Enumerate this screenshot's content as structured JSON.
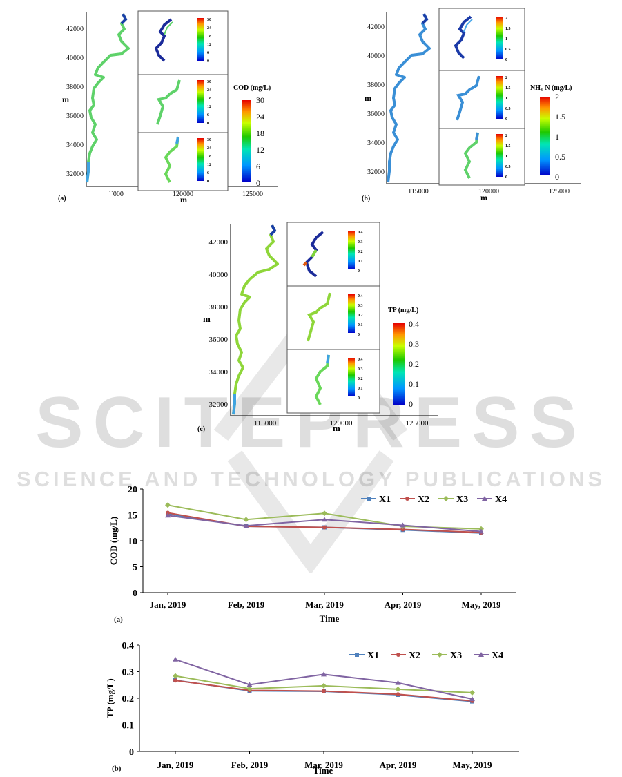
{
  "watermark": {
    "main": "SCITEPRESS",
    "sub": "SCIENCE AND TECHNOLOGY PUBLICATIONS"
  },
  "maps": [
    {
      "panel_label": "(a)",
      "axis_label": "m",
      "y_ticks": [
        "42000",
        "40000",
        "38000",
        "36000",
        "34000",
        "32000"
      ],
      "x_ticks": [
        "``000",
        "120000",
        "125000"
      ],
      "colorbar_title": "COD (mg/L)",
      "colorbar_ticks": [
        "30",
        "24",
        "18",
        "12",
        "6",
        "0"
      ],
      "inset_ticks": [
        "30",
        "24",
        "18",
        "12",
        "6",
        "0"
      ]
    },
    {
      "panel_label": "(b)",
      "axis_label": "m",
      "y_ticks": [
        "42000",
        "40000",
        "38000",
        "36000",
        "34000",
        "32000"
      ],
      "x_ticks": [
        "115000",
        "120000",
        "125000"
      ],
      "colorbar_title": "NH₃-N (mg/L)",
      "colorbar_ticks": [
        "2",
        "1.5",
        "1",
        "0.5",
        "0"
      ],
      "inset_ticks": [
        "2",
        "1.5",
        "1",
        "0.5",
        "0"
      ]
    },
    {
      "panel_label": "(c)",
      "axis_label": "m",
      "y_ticks": [
        "42000",
        "40000",
        "38000",
        "36000",
        "34000",
        "32000"
      ],
      "x_ticks": [
        "115000",
        "120000",
        "125000"
      ],
      "colorbar_title": "TP (mg/L)",
      "colorbar_ticks": [
        "0.4",
        "0.3",
        "0.2",
        "0.1",
        "0"
      ],
      "inset_ticks": [
        "0.4",
        "0.3",
        "0.2",
        "0.1",
        "0"
      ]
    }
  ],
  "chart_data": [
    {
      "type": "line",
      "panel_label": "(a)",
      "xlabel": "Time",
      "ylabel": "COD (mg/L)",
      "categories": [
        "Jan, 2019",
        "Feb, 2019",
        "Mar, 2019",
        "Apr, 2019",
        "May, 2019"
      ],
      "ylim": [
        0,
        20
      ],
      "yticks": [
        0,
        5,
        10,
        15,
        20
      ],
      "legend_position": "top-right",
      "grid": false,
      "series": [
        {
          "name": "X1",
          "color": "#4f81bd",
          "marker": "square",
          "values": [
            15.2,
            12.8,
            12.6,
            12.1,
            11.5
          ]
        },
        {
          "name": "X2",
          "color": "#c0504d",
          "marker": "circle",
          "values": [
            15.4,
            12.8,
            12.6,
            12.2,
            11.6
          ]
        },
        {
          "name": "X3",
          "color": "#9bbb59",
          "marker": "diamond",
          "values": [
            16.9,
            14.1,
            15.3,
            12.8,
            12.3
          ]
        },
        {
          "name": "X4",
          "color": "#8064a2",
          "marker": "triangle",
          "values": [
            14.9,
            12.9,
            14.1,
            13.0,
            11.8
          ]
        }
      ]
    },
    {
      "type": "line",
      "panel_label": "(b)",
      "xlabel": "Time",
      "ylabel": "TP (mg/L)",
      "categories": [
        "Jan, 2019",
        "Feb, 2019",
        "Mar, 2019",
        "Apr, 2019",
        "May, 2019"
      ],
      "ylim": [
        0,
        0.4
      ],
      "yticks": [
        0,
        0.1,
        0.2,
        0.3,
        0.4
      ],
      "legend_position": "top-right",
      "grid": false,
      "series": [
        {
          "name": "X1",
          "color": "#4f81bd",
          "marker": "square",
          "values": [
            0.268,
            0.228,
            0.226,
            0.213,
            0.188
          ]
        },
        {
          "name": "X2",
          "color": "#c0504d",
          "marker": "circle",
          "values": [
            0.267,
            0.23,
            0.227,
            0.215,
            0.19
          ]
        },
        {
          "name": "X3",
          "color": "#9bbb59",
          "marker": "diamond",
          "values": [
            0.284,
            0.236,
            0.247,
            0.234,
            0.221
          ]
        },
        {
          "name": "X4",
          "color": "#8064a2",
          "marker": "triangle",
          "values": [
            0.346,
            0.251,
            0.29,
            0.258,
            0.197
          ]
        }
      ]
    }
  ]
}
